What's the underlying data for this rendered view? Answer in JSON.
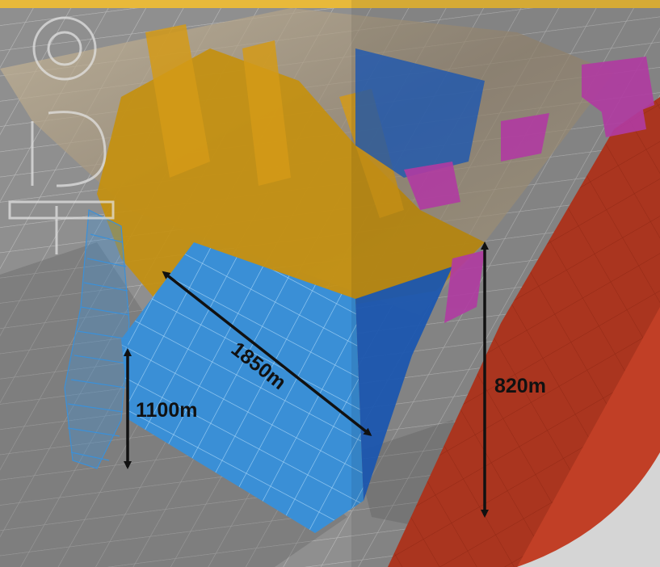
{
  "scene": {
    "watermark_text": "Forge",
    "colors": {
      "ground": "#8c8c8c",
      "grid": "#b8b8b8",
      "top_bar": "#e8b93a",
      "orange_surfaces": "#c4900f",
      "light_blue_surfaces": "#3b90d8",
      "dark_blue_surfaces": "#1f5fbf",
      "magenta_surfaces": "#c040b0",
      "red_slab": "#c03a22",
      "dimension_arrows": "#111111"
    },
    "dimensions": [
      {
        "id": "width",
        "label": "1850m"
      },
      {
        "id": "height-right",
        "label": "820m"
      },
      {
        "id": "height-left",
        "label": "1100m"
      }
    ]
  }
}
